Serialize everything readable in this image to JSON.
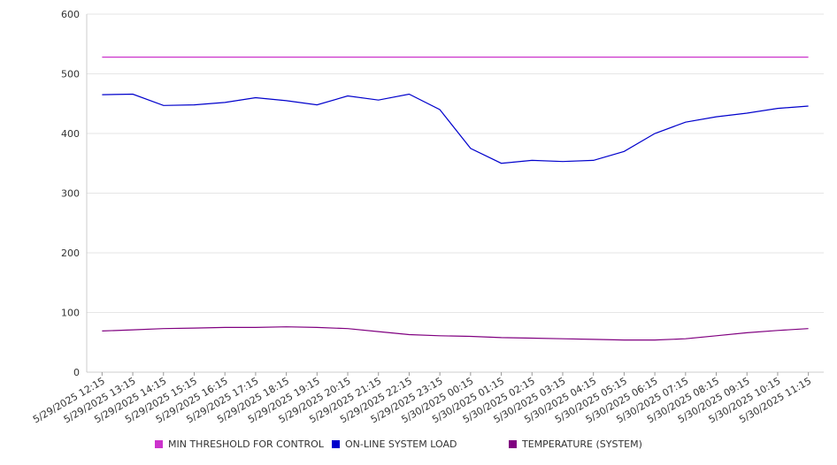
{
  "chart_data": {
    "type": "line",
    "x": [
      "5/29/2025 12:15",
      "5/29/2025 13:15",
      "5/29/2025 14:15",
      "5/29/2025 15:15",
      "5/29/2025 16:15",
      "5/29/2025 17:15",
      "5/29/2025 18:15",
      "5/29/2025 19:15",
      "5/29/2025 20:15",
      "5/29/2025 21:15",
      "5/29/2025 22:15",
      "5/29/2025 23:15",
      "5/30/2025 00:15",
      "5/30/2025 01:15",
      "5/30/2025 02:15",
      "5/30/2025 03:15",
      "5/30/2025 04:15",
      "5/30/2025 05:15",
      "5/30/2025 06:15",
      "5/30/2025 07:15",
      "5/30/2025 08:15",
      "5/30/2025 09:15",
      "5/30/2025 10:15",
      "5/30/2025 11:15"
    ],
    "ylim": [
      0,
      600
    ],
    "yticks": [
      0,
      100,
      200,
      300,
      400,
      500,
      600
    ],
    "grid": true,
    "legend_position": "bottom",
    "series": [
      {
        "name": "MIN THRESHOLD FOR CONTROL",
        "color": "#cc33cc",
        "values": [
          528,
          528,
          528,
          528,
          528,
          528,
          528,
          528,
          528,
          528,
          528,
          528,
          528,
          528,
          528,
          528,
          528,
          528,
          528,
          528,
          528,
          528,
          528,
          528
        ]
      },
      {
        "name": "ON-LINE SYSTEM LOAD",
        "color": "#0000cc",
        "values": [
          465,
          466,
          447,
          448,
          452,
          460,
          455,
          448,
          463,
          456,
          466,
          440,
          375,
          350,
          355,
          353,
          355,
          370,
          400,
          419,
          428,
          434,
          442,
          446
        ]
      },
      {
        "name": "TEMPERATURE (SYSTEM)",
        "color": "#800080",
        "values": [
          69,
          71,
          73,
          74,
          75,
          75,
          76,
          75,
          73,
          68,
          63,
          61,
          60,
          58,
          57,
          56,
          55,
          54,
          54,
          56,
          61,
          66,
          70,
          73
        ]
      }
    ]
  }
}
